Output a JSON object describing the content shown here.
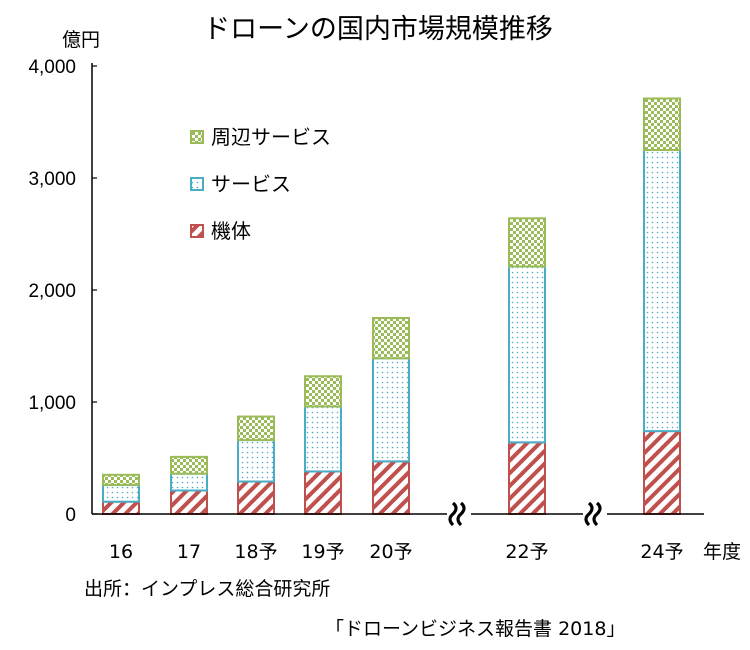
{
  "chart_data": {
    "type": "bar",
    "stacked": true,
    "title": "ドローンの国内市場規模推移",
    "ylabel": "億円",
    "xlabel": "年度",
    "ylim": [
      0,
      4000
    ],
    "yticks": [
      "0",
      "1,000",
      "2,000",
      "3,000",
      "4,000"
    ],
    "ytick_values": [
      0,
      1000,
      2000,
      3000,
      4000
    ],
    "categories": [
      "16",
      "17",
      "18予",
      "19予",
      "20予",
      "22予",
      "24予"
    ],
    "axis_breaks_before": [
      "22予",
      "24予"
    ],
    "legend_position": "top-left",
    "series": [
      {
        "name": "機体",
        "pattern": "diagonal-stripes",
        "color": "#c0504d",
        "values": [
          110,
          210,
          290,
          380,
          470,
          640,
          740
        ]
      },
      {
        "name": "サービス",
        "pattern": "dots",
        "color": "#4bacc6",
        "values": [
          150,
          150,
          370,
          580,
          920,
          1570,
          2510
        ]
      },
      {
        "name": "周辺サービス",
        "pattern": "checker",
        "color": "#9bbb59",
        "values": [
          90,
          150,
          210,
          270,
          360,
          430,
          460
        ]
      }
    ],
    "legend_order": [
      "周辺サービス",
      "サービス",
      "機体"
    ]
  },
  "source": {
    "line1": "出所：インプレス総合研究所",
    "line2": "「ドローンビジネス報告書 2018」"
  }
}
